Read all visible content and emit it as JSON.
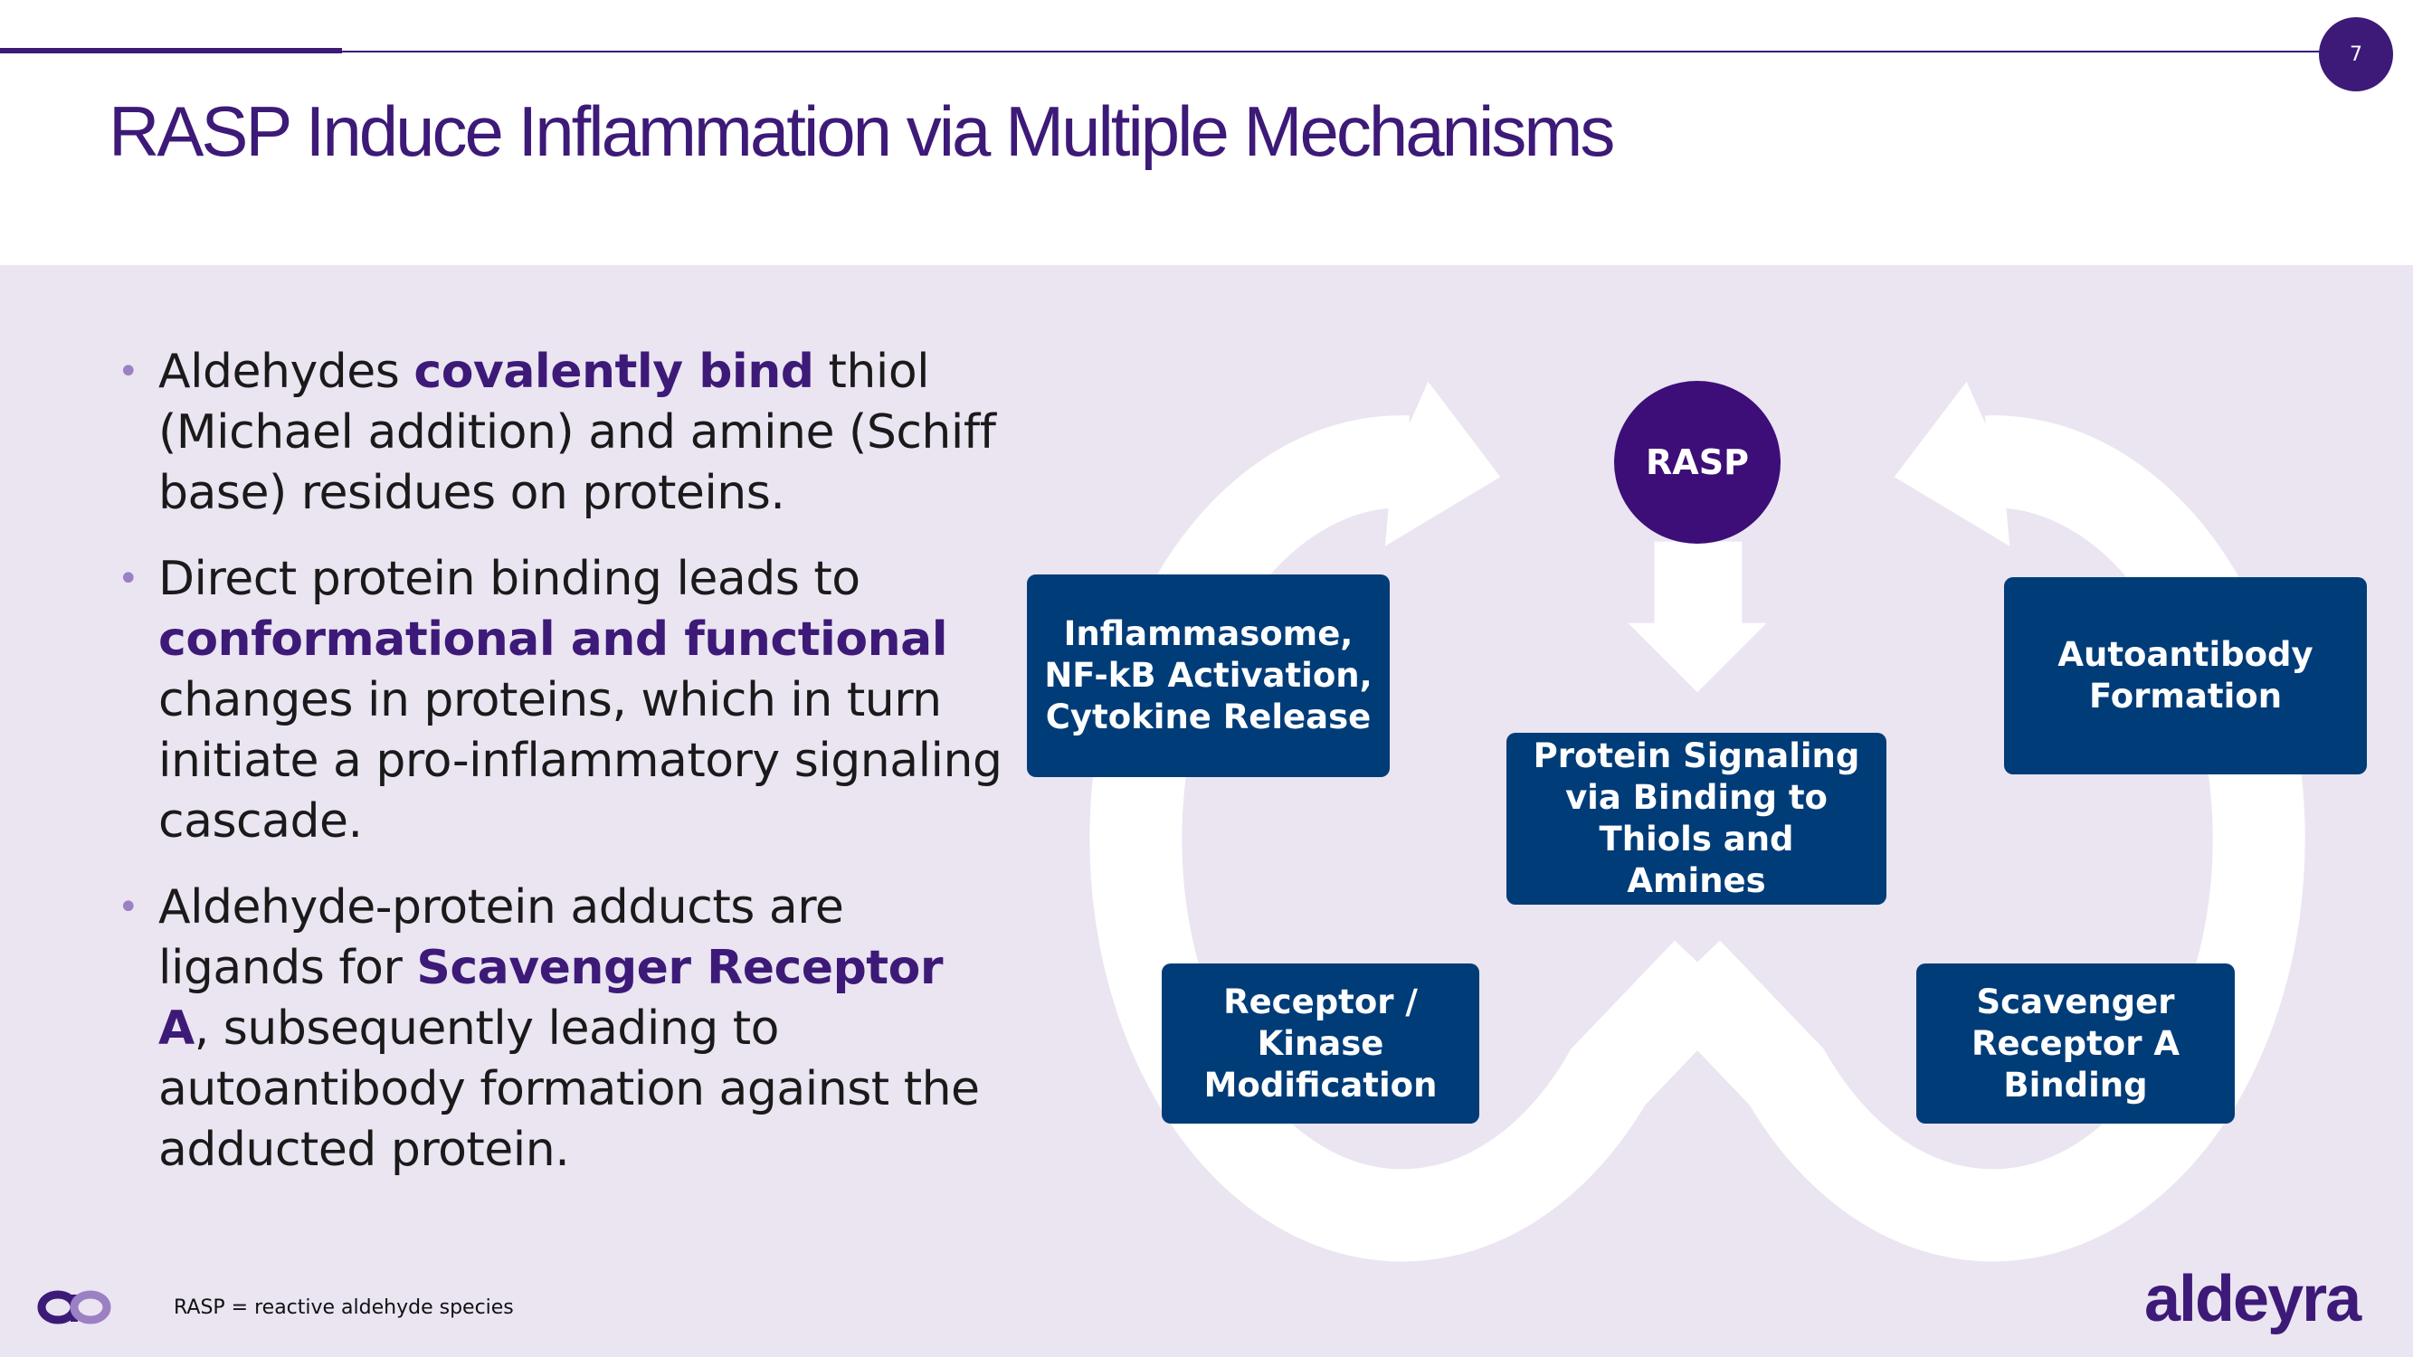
{
  "page_number": "7",
  "title": "RASP Induce Inflammation via Multiple Mechanisms",
  "bullets": [
    {
      "segments": [
        {
          "text": "Aldehydes ",
          "bold": false
        },
        {
          "text": "covalently bind",
          "bold": true
        },
        {
          "text": " thiol (Michael addition) and amine (Schiff base) residues on proteins.",
          "bold": false
        }
      ]
    },
    {
      "segments": [
        {
          "text": "Direct protein binding leads to ",
          "bold": false
        },
        {
          "text": "conformational and functional",
          "bold": true
        },
        {
          "text": " changes in proteins, which in turn initiate a pro-inflammatory signaling cascade.",
          "bold": false
        }
      ]
    },
    {
      "segments": [
        {
          "text": "Aldehyde-protein adducts are ligands for ",
          "bold": false
        },
        {
          "text": "Scavenger Receptor A",
          "bold": true
        },
        {
          "text": ", subsequently leading to autoantibody formation against the adducted protein.",
          "bold": false
        }
      ]
    }
  ],
  "diagram": {
    "center_node": "RASP",
    "boxes": {
      "inflammasome": "Inflammasome, NF-kB Activation, Cytokine Release",
      "autoantibody": "Autoantibody Formation",
      "protein_signaling": "Protein Signaling via Binding to Thiols and Amines",
      "receptor_kinase": "Receptor / Kinase Modification",
      "scavenger": "Scavenger Receptor A Binding"
    }
  },
  "footnote": "RASP = reactive aldehyde species",
  "brand": "aldeyra",
  "colors": {
    "primary_purple": "#3D1A78",
    "box_blue": "#003C78",
    "panel_bg": "#EAE5F1",
    "accent_lavender": "#9B80C4"
  }
}
